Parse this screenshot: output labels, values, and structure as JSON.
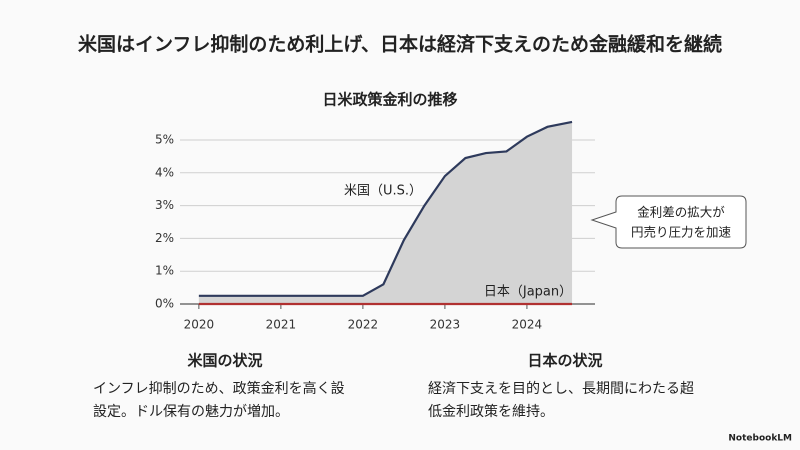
{
  "slide": {
    "title": "米国はインフレ抑制のため利上げ、日本は経済下支えのため金融緩和を継続",
    "sections": [
      {
        "heading": "米国の状況",
        "lines": [
          "インフレ抑制のため、政策金利を高く設",
          "設定。ドル保有の魅力が増加。"
        ]
      },
      {
        "heading": "日本の状況",
        "lines": [
          "経済下支えを目的とし、長期間にわたる超",
          "低金利政策を維持。"
        ]
      }
    ],
    "footer": "NotebookLM"
  },
  "chart_data": {
    "type": "line",
    "title": "日米政策金利の推移",
    "series": [
      {
        "name": "米国（U.S.）",
        "color": "#2e3a5c",
        "x": [
          2020,
          2022,
          2022.25,
          2022.5,
          2022.75,
          2023,
          2023.25,
          2023.5,
          2023.75,
          2024,
          2024.25,
          2024.55
        ],
        "values": [
          0.25,
          0.25,
          0.6,
          1.95,
          3.0,
          3.9,
          4.45,
          4.6,
          4.65,
          5.1,
          5.4,
          5.55
        ]
      },
      {
        "name": "日本（Japan）",
        "color": "#b03030",
        "x": [
          2020,
          2024.55
        ],
        "values": [
          0,
          0
        ]
      }
    ],
    "fill_color": "#d4d4d4",
    "annotation": [
      "金利差の拡大が",
      "円売り圧力を加速"
    ],
    "xlim": [
      2019.77,
      2024.83
    ],
    "xticks": [
      2020,
      2021,
      2022,
      2023,
      2024
    ],
    "ylim": [
      0,
      5.7
    ],
    "yticks": [
      {
        "value": 0,
        "label": "0%"
      },
      {
        "value": 1,
        "label": "1%"
      },
      {
        "value": 2,
        "label": "2%"
      },
      {
        "value": 3,
        "label": "3%"
      },
      {
        "value": 4,
        "label": "4%"
      },
      {
        "value": 5,
        "label": "5%"
      }
    ],
    "grid": true
  }
}
